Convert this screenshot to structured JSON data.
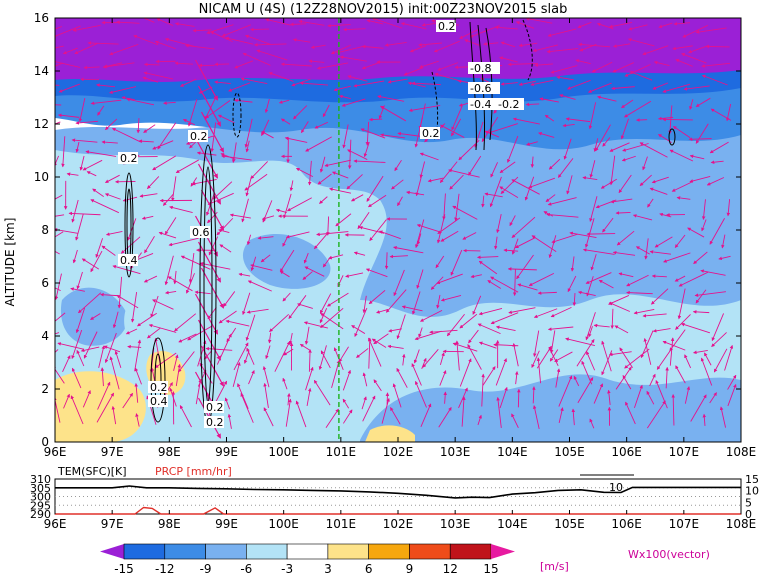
{
  "title": "NICAM U (4S) (12Z28NOV2015) init:00Z23NOV2015 slab",
  "chart_data": [
    {
      "type": "heatmap",
      "description_fields": {
        "variable": "U",
        "ylabel": "ALTITUDE [km]",
        "xlabel": ""
      },
      "x_ticks": [
        "96E",
        "97E",
        "98E",
        "99E",
        "100E",
        "101E",
        "102E",
        "103E",
        "104E",
        "105E",
        "106E",
        "107E",
        "108E"
      ],
      "x_range": [
        96,
        108
      ],
      "y_ticks": [
        0,
        2,
        4,
        6,
        8,
        10,
        12,
        14,
        16
      ],
      "y_range": [
        0,
        16
      ],
      "reference_longitude": 101,
      "contour_labels": [
        "0.2",
        "0.2",
        "0.2",
        "0.4",
        "0.6",
        "0.2",
        "0.4",
        "0.2",
        "0.2",
        "0.2",
        "-0.8",
        "-0.6",
        "-0.4",
        "-0.2"
      ],
      "vectors_legend": "Wx100(vector)"
    },
    {
      "type": "line",
      "series": [
        {
          "name": "TEM(SFC)[K]",
          "axis": "left",
          "color": "#000000"
        },
        {
          "name": "PRCP [mm/hr]",
          "axis": "right",
          "color": "#e0302a"
        }
      ],
      "left_ticks": [
        290,
        295,
        300,
        305,
        310
      ],
      "left_range": [
        290,
        310
      ],
      "right_ticks": [
        0,
        5,
        10,
        15
      ],
      "right_range": [
        0,
        15
      ],
      "annotation": "10",
      "x_ticks": [
        "96E",
        "97E",
        "98E",
        "99E",
        "100E",
        "101E",
        "102E",
        "103E",
        "104E",
        "105E",
        "106E",
        "107E",
        "108E"
      ],
      "tem": [
        [
          96.0,
          305.0
        ],
        [
          96.5,
          305.0
        ],
        [
          97.0,
          305.0
        ],
        [
          97.3,
          306.0
        ],
        [
          97.6,
          305.0
        ],
        [
          98.0,
          305.0
        ],
        [
          98.5,
          304.6
        ],
        [
          99.0,
          304.4
        ],
        [
          99.5,
          304.0
        ],
        [
          100.0,
          303.8
        ],
        [
          100.5,
          303.5
        ],
        [
          101.0,
          303.2
        ],
        [
          101.5,
          302.6
        ],
        [
          102.0,
          301.8
        ],
        [
          102.5,
          300.7
        ],
        [
          103.0,
          299.2
        ],
        [
          103.3,
          299.6
        ],
        [
          103.6,
          299.4
        ],
        [
          104.0,
          301.4
        ],
        [
          104.4,
          302.2
        ],
        [
          104.8,
          303.5
        ],
        [
          105.2,
          303.8
        ],
        [
          105.6,
          302.4
        ],
        [
          105.9,
          302.3
        ],
        [
          106.1,
          305.2
        ],
        [
          106.5,
          305.2
        ],
        [
          107.0,
          305.2
        ],
        [
          107.5,
          305.2
        ],
        [
          108.0,
          305.2
        ]
      ],
      "prcp": [
        [
          96.0,
          0
        ],
        [
          97.4,
          0
        ],
        [
          97.55,
          2.8
        ],
        [
          97.7,
          2.4
        ],
        [
          97.85,
          0
        ],
        [
          98.6,
          0
        ],
        [
          98.8,
          2.6
        ],
        [
          98.95,
          0
        ],
        [
          108.0,
          0
        ]
      ]
    },
    {
      "type": "colorbar",
      "tick_labels": [
        "-15",
        "-12",
        "-9",
        "-6",
        "-3",
        "3",
        "6",
        "9",
        "12",
        "15"
      ],
      "unit": "[m/s]",
      "colors": [
        "#9b20d6",
        "#1e6be0",
        "#3d8ce6",
        "#79b1f0",
        "#b3e3f6",
        "#ffffff",
        "#fde38a",
        "#f6a70e",
        "#ef4c1a",
        "#c0131b",
        "#e71aa0"
      ]
    }
  ]
}
